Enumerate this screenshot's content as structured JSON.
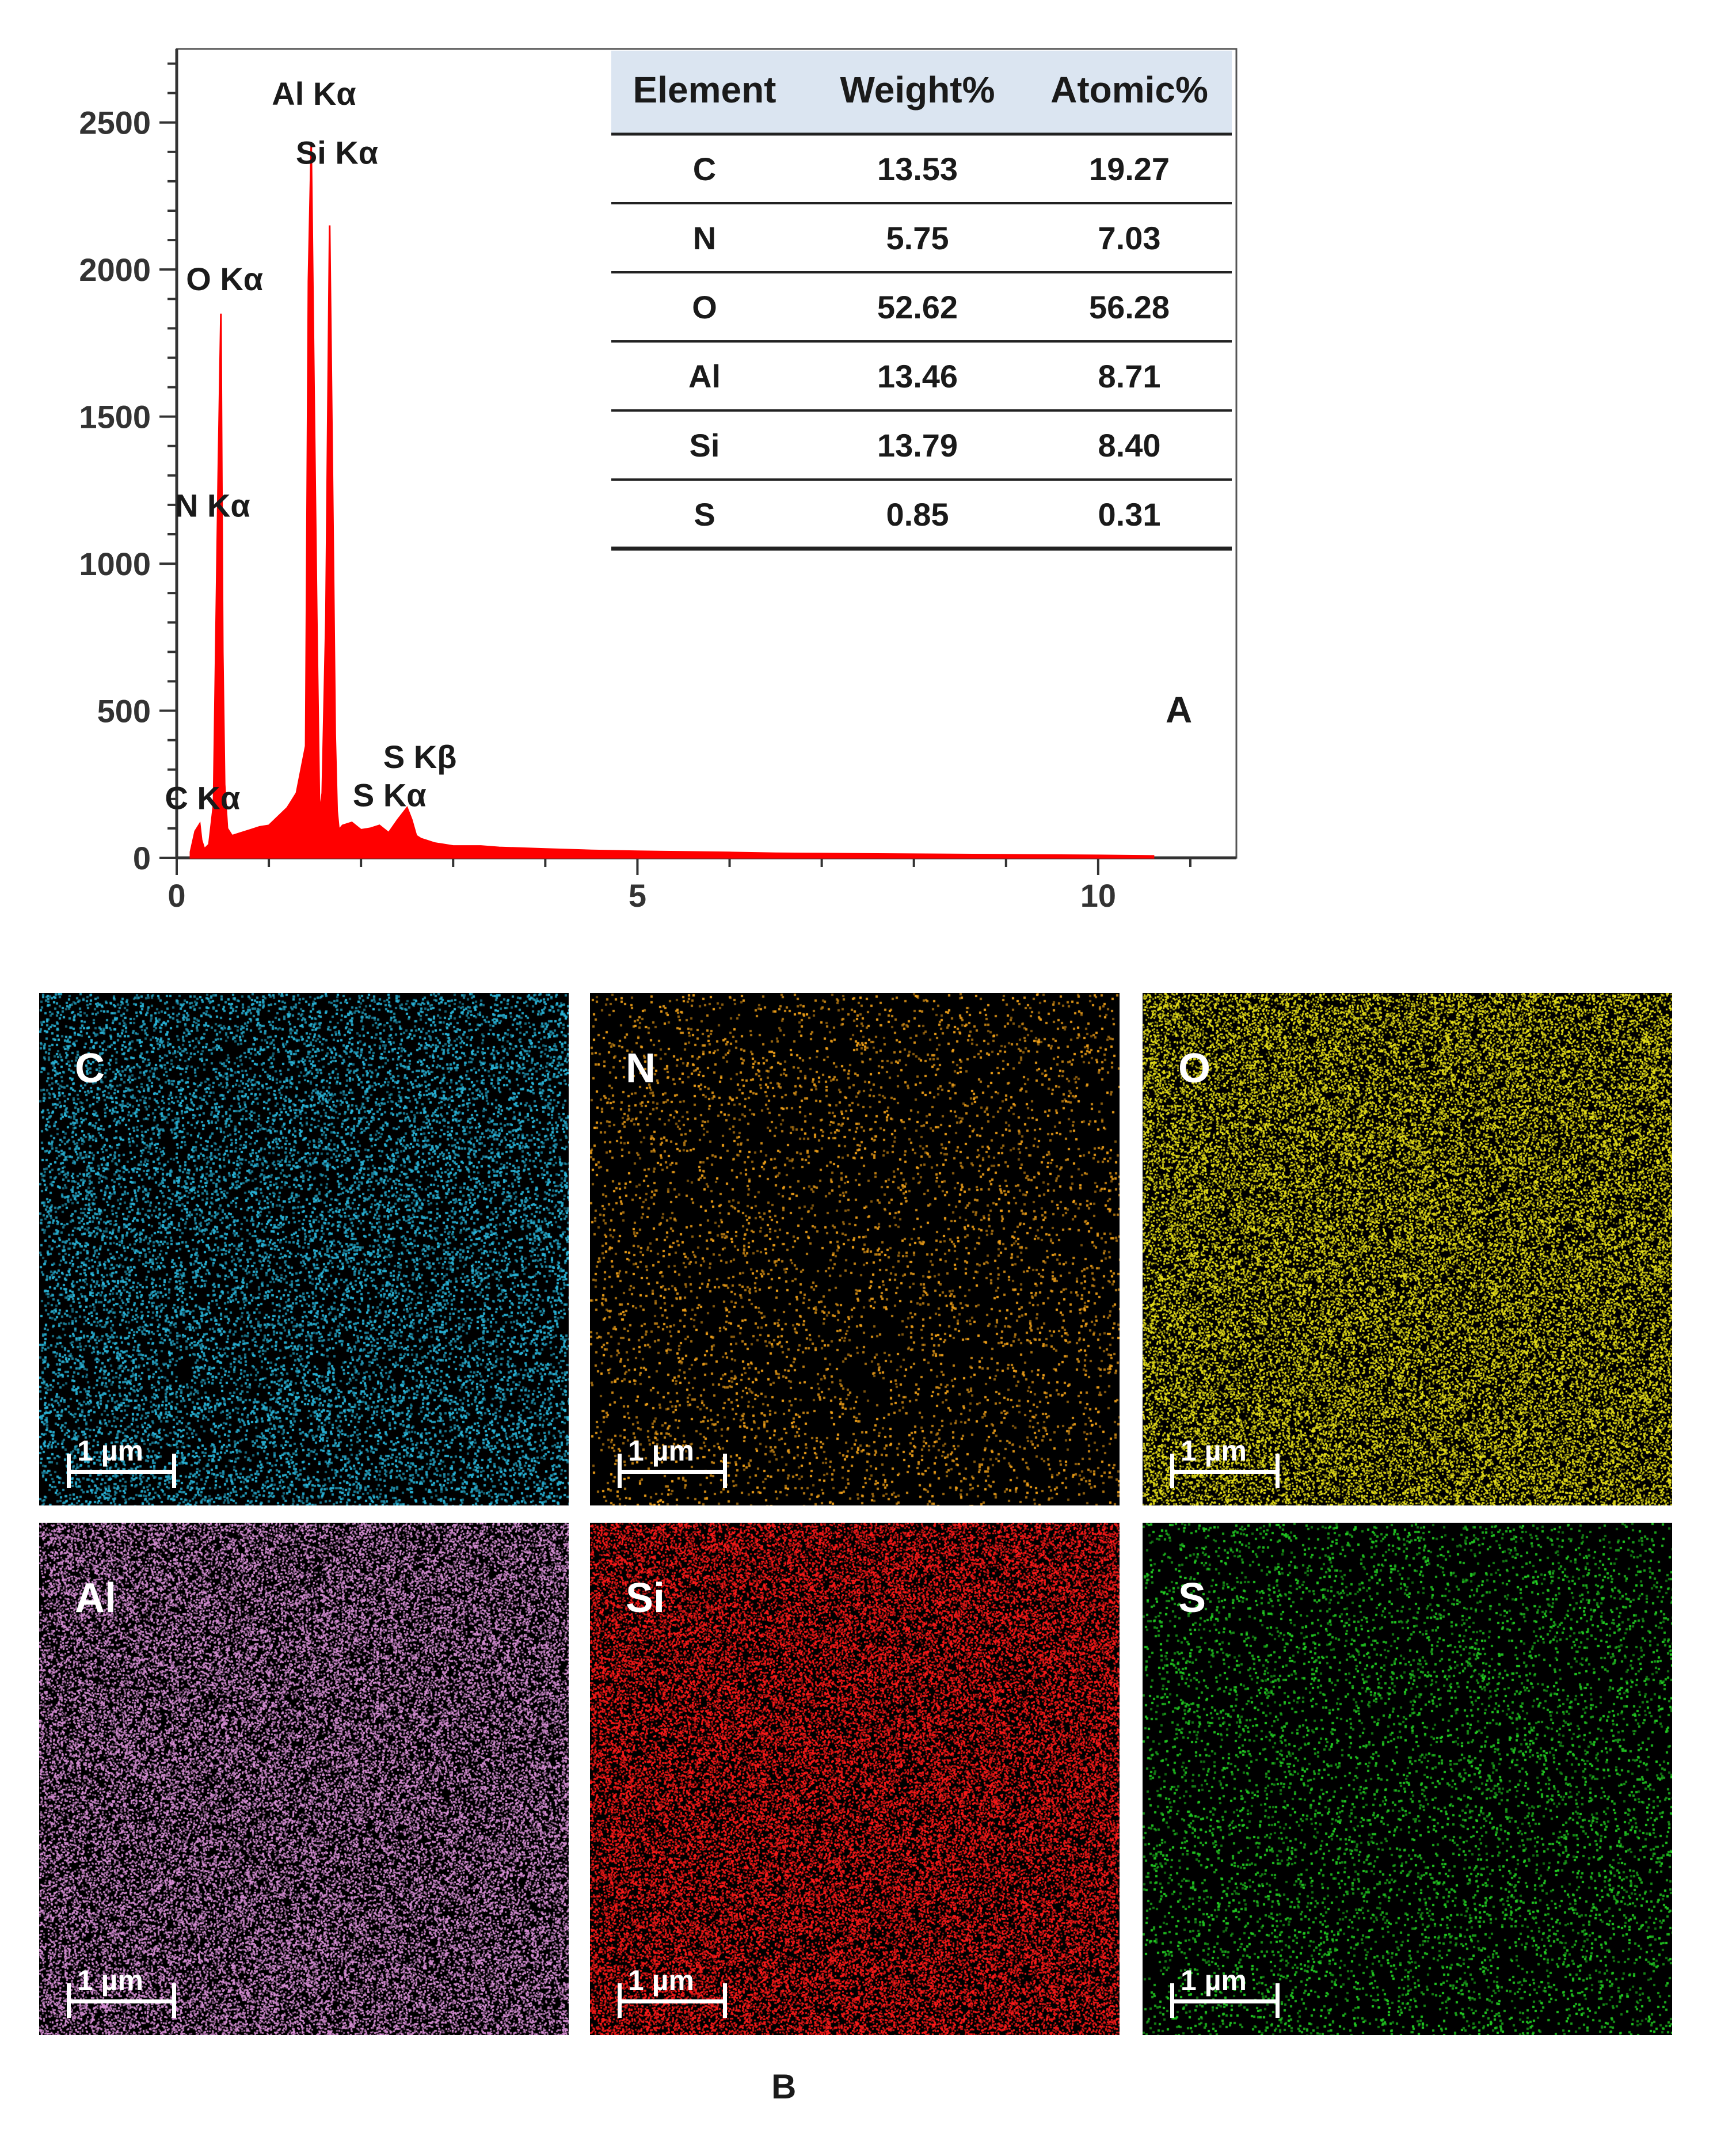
{
  "chart_data": [
    {
      "type": "line",
      "panel_label": "A",
      "xlabel": "",
      "ylabel": "",
      "xlim": [
        0,
        11.5
      ],
      "ylim": [
        0,
        2750
      ],
      "x_ticks": [
        "0",
        "5",
        "10"
      ],
      "y_ticks": [
        "0",
        "500",
        "1000",
        "1500",
        "2000",
        "2500"
      ],
      "series": [
        {
          "color": "#ff0000",
          "x": [
            0.15,
            0.2,
            0.25,
            0.27,
            0.3,
            0.35,
            0.4,
            0.45,
            0.48,
            0.5,
            0.52,
            0.55,
            0.6,
            0.7,
            0.8,
            0.9,
            1.0,
            1.1,
            1.2,
            1.3,
            1.4,
            1.43,
            1.46,
            1.49,
            1.52,
            1.55,
            1.58,
            1.62,
            1.66,
            1.7,
            1.72,
            1.74,
            1.76,
            1.8,
            1.9,
            2.0,
            2.1,
            2.2,
            2.3,
            2.4,
            2.5,
            2.55,
            2.6,
            2.65,
            2.7,
            2.8,
            2.9,
            3.0,
            3.3,
            3.5,
            4.0,
            4.5,
            5.0,
            5.5,
            6.0,
            6.5,
            7.0,
            8.0,
            9.0,
            10.0,
            10.6
          ],
          "y": [
            20,
            90,
            115,
            60,
            30,
            45,
            180,
            1280,
            1850,
            700,
            250,
            100,
            75,
            85,
            95,
            105,
            110,
            140,
            170,
            220,
            380,
            1960,
            2420,
            1600,
            820,
            150,
            220,
            820,
            2150,
            1020,
            420,
            160,
            95,
            110,
            120,
            95,
            100,
            110,
            85,
            130,
            170,
            130,
            75,
            65,
            60,
            50,
            45,
            40,
            40,
            35,
            30,
            25,
            22,
            20,
            18,
            15,
            14,
            12,
            10,
            8,
            6
          ]
        }
      ],
      "annotations": [
        {
          "text": "Al Kα",
          "x": 1.49,
          "y": 2560
        },
        {
          "text": "Si Kα",
          "x": 1.74,
          "y": 2360
        },
        {
          "text": "O Kα",
          "x": 0.52,
          "y": 1930
        },
        {
          "text": "N Kα",
          "x": 0.39,
          "y": 1160
        },
        {
          "text": "C Kα",
          "x": 0.28,
          "y": 165
        },
        {
          "text": "S Kβ",
          "x": 2.64,
          "y": 305
        },
        {
          "text": "S Kα",
          "x": 2.31,
          "y": 175
        }
      ]
    }
  ],
  "composition_table": {
    "headers": [
      "Element",
      "Weight%",
      "Atomic%"
    ],
    "rows": [
      [
        "C",
        "13.53",
        "19.27"
      ],
      [
        "N",
        "5.75",
        "7.03"
      ],
      [
        "O",
        "52.62",
        "56.28"
      ],
      [
        "Al",
        "13.46",
        "8.71"
      ],
      [
        "Si",
        "13.79",
        "8.40"
      ],
      [
        "S",
        "0.85",
        "0.31"
      ]
    ],
    "header_background": "#dbe5f1"
  },
  "panel_b": {
    "label": "B",
    "maps": [
      {
        "element": "C",
        "scale_bar": "1 µm",
        "color": "#29b4d8",
        "density": 0.25
      },
      {
        "element": "N",
        "scale_bar": "1 µm",
        "color": "#f0a018",
        "density": 0.08
      },
      {
        "element": "O",
        "scale_bar": "1 µm",
        "color": "#e9e21a",
        "density": 0.8
      },
      {
        "element": "Al",
        "scale_bar": "1 µm",
        "color": "#d88fd6",
        "density": 0.85
      },
      {
        "element": "Si",
        "scale_bar": "1 µm",
        "color": "#ff1a1a",
        "density": 0.9
      },
      {
        "element": "S",
        "scale_bar": "1 µm",
        "color": "#22cc22",
        "density": 0.12
      }
    ]
  }
}
